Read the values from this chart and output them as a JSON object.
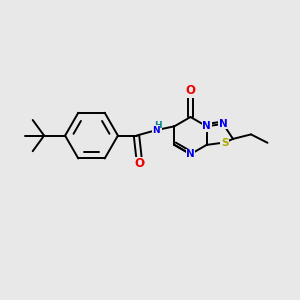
{
  "bg_color": "#E8E8E8",
  "bond_color": "#000000",
  "bond_width": 1.4,
  "atom_colors": {
    "N": "#0000EE",
    "O": "#EE0000",
    "S": "#AAAA00",
    "NH_color": "#008888",
    "C": "#000000"
  },
  "font_size_atom": 7.5,
  "font_size_eth": 7.0
}
